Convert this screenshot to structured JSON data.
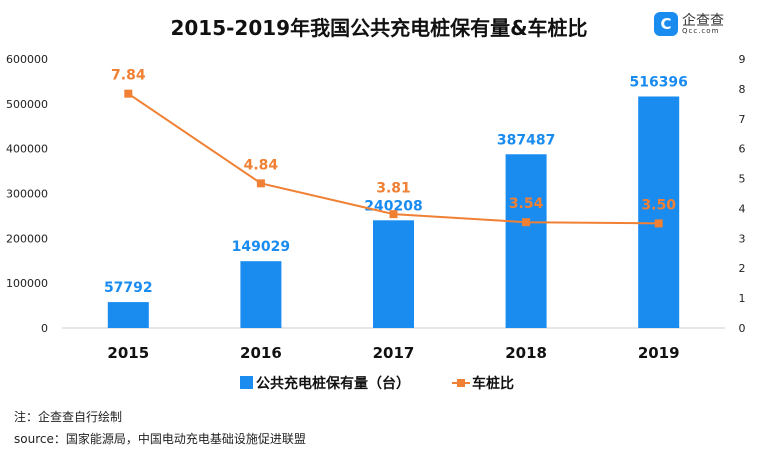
{
  "logo": {
    "name": "企查查",
    "domain": "Qcc.com"
  },
  "chart_data": {
    "type": "bar+line",
    "title": "2015-2019年我国公共充电桩保有量&车桩比",
    "categories": [
      "2015",
      "2016",
      "2017",
      "2018",
      "2019"
    ],
    "series": [
      {
        "name": "公共充电桩保有量（台）",
        "type": "bar",
        "axis": "left",
        "color": "#1a8cf0",
        "values": [
          57792,
          149029,
          240208,
          387487,
          516396
        ]
      },
      {
        "name": "车桩比",
        "type": "line",
        "axis": "right",
        "color": "#f08033",
        "values": [
          7.84,
          4.84,
          3.81,
          3.54,
          3.5
        ]
      }
    ],
    "y_left": {
      "ylim": [
        0,
        600000
      ],
      "ticks": [
        "0",
        "100000",
        "200000",
        "300000",
        "400000",
        "500000",
        "600000"
      ]
    },
    "y_right": {
      "ylim": [
        0,
        9
      ],
      "ticks": [
        "0",
        "1",
        "2",
        "3",
        "4",
        "5",
        "6",
        "7",
        "8",
        "9"
      ]
    },
    "grid": false,
    "legend": "bottom"
  },
  "notes": {
    "note": "注：企查查自行绘制",
    "source": "source：国家能源局，中国电动充电基础设施促进联盟"
  }
}
